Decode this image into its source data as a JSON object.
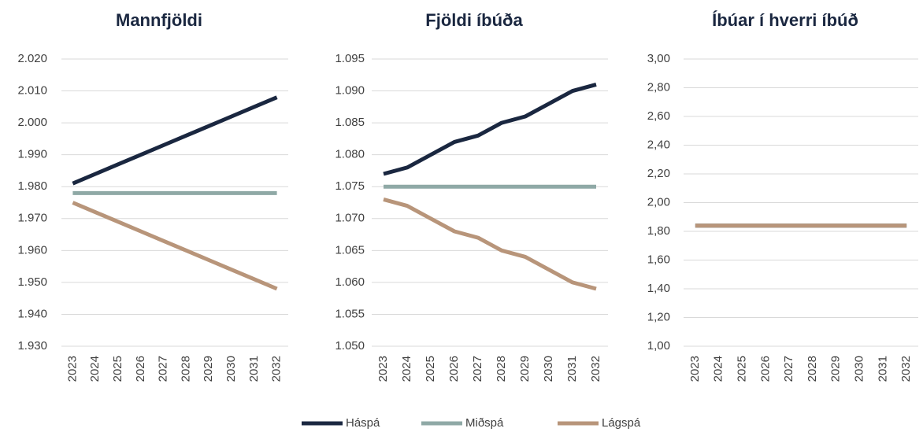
{
  "chart_data": [
    {
      "type": "line",
      "title": "Mannfjöldi",
      "categories": [
        "2023",
        "2024",
        "2025",
        "2026",
        "2027",
        "2028",
        "2029",
        "2030",
        "2031",
        "2032"
      ],
      "series": [
        {
          "name": "Háspá",
          "color": "#1a2740",
          "values": [
            1981,
            1984,
            1987,
            1990,
            1993,
            1996,
            1999,
            2002,
            2005,
            2008
          ]
        },
        {
          "name": "Miðspá",
          "color": "#8fa9a6",
          "values": [
            1978,
            1978,
            1978,
            1978,
            1978,
            1978,
            1978,
            1978,
            1978,
            1978
          ]
        },
        {
          "name": "Lágspá",
          "color": "#b8957a",
          "values": [
            1975,
            1972,
            1969,
            1966,
            1963,
            1960,
            1957,
            1954,
            1951,
            1948
          ]
        }
      ],
      "ylim": [
        1930,
        2020
      ],
      "yticks": [
        {
          "value": 1930,
          "label": "1.930"
        },
        {
          "value": 1940,
          "label": "1.940"
        },
        {
          "value": 1950,
          "label": "1.950"
        },
        {
          "value": 1960,
          "label": "1.960"
        },
        {
          "value": 1970,
          "label": "1.970"
        },
        {
          "value": 1980,
          "label": "1.980"
        },
        {
          "value": 1990,
          "label": "1.990"
        },
        {
          "value": 2000,
          "label": "2.000"
        },
        {
          "value": 2010,
          "label": "2.010"
        },
        {
          "value": 2020,
          "label": "2.020"
        }
      ],
      "grid": true
    },
    {
      "type": "line",
      "title": "Fjöldi íbúða",
      "categories": [
        "2023",
        "2024",
        "2025",
        "2026",
        "2027",
        "2028",
        "2029",
        "2030",
        "2031",
        "2032"
      ],
      "series": [
        {
          "name": "Háspá",
          "color": "#1a2740",
          "values": [
            1077,
            1078,
            1080,
            1082,
            1083,
            1085,
            1086,
            1088,
            1090,
            1091
          ]
        },
        {
          "name": "Miðspá",
          "color": "#8fa9a6",
          "values": [
            1075,
            1075,
            1075,
            1075,
            1075,
            1075,
            1075,
            1075,
            1075,
            1075
          ]
        },
        {
          "name": "Lágspá",
          "color": "#b8957a",
          "values": [
            1073,
            1072,
            1070,
            1068,
            1067,
            1065,
            1064,
            1062,
            1060,
            1059
          ]
        }
      ],
      "ylim": [
        1050,
        1095
      ],
      "yticks": [
        {
          "value": 1050,
          "label": "1.050"
        },
        {
          "value": 1055,
          "label": "1.055"
        },
        {
          "value": 1060,
          "label": "1.060"
        },
        {
          "value": 1065,
          "label": "1.065"
        },
        {
          "value": 1070,
          "label": "1.070"
        },
        {
          "value": 1075,
          "label": "1.075"
        },
        {
          "value": 1080,
          "label": "1.080"
        },
        {
          "value": 1085,
          "label": "1.085"
        },
        {
          "value": 1090,
          "label": "1.090"
        },
        {
          "value": 1095,
          "label": "1.095"
        }
      ],
      "grid": true
    },
    {
      "type": "line",
      "title": "Íbúar í hverri íbúð",
      "categories": [
        "2023",
        "2024",
        "2025",
        "2026",
        "2027",
        "2028",
        "2029",
        "2030",
        "2031",
        "2032"
      ],
      "series": [
        {
          "name": "Háspá",
          "color": "#1a2740",
          "values": [
            1.84,
            1.84,
            1.84,
            1.84,
            1.84,
            1.84,
            1.84,
            1.84,
            1.84,
            1.84
          ]
        },
        {
          "name": "Miðspá",
          "color": "#8fa9a6",
          "values": [
            1.84,
            1.84,
            1.84,
            1.84,
            1.84,
            1.84,
            1.84,
            1.84,
            1.84,
            1.84
          ]
        },
        {
          "name": "Lágspá",
          "color": "#b8957a",
          "values": [
            1.84,
            1.84,
            1.84,
            1.84,
            1.84,
            1.84,
            1.84,
            1.84,
            1.84,
            1.84
          ]
        }
      ],
      "ylim": [
        1,
        3
      ],
      "yticks": [
        {
          "value": 1,
          "label": "1,00"
        },
        {
          "value": 1.2,
          "label": "1,20"
        },
        {
          "value": 1.4,
          "label": "1,40"
        },
        {
          "value": 1.6,
          "label": "1,60"
        },
        {
          "value": 1.8,
          "label": "1,80"
        },
        {
          "value": 2,
          "label": "2,00"
        },
        {
          "value": 2.2,
          "label": "2,20"
        },
        {
          "value": 2.4,
          "label": "2,40"
        },
        {
          "value": 2.6,
          "label": "2,60"
        },
        {
          "value": 2.8,
          "label": "2,80"
        },
        {
          "value": 3,
          "label": "3,00"
        }
      ],
      "grid": true
    }
  ]
}
